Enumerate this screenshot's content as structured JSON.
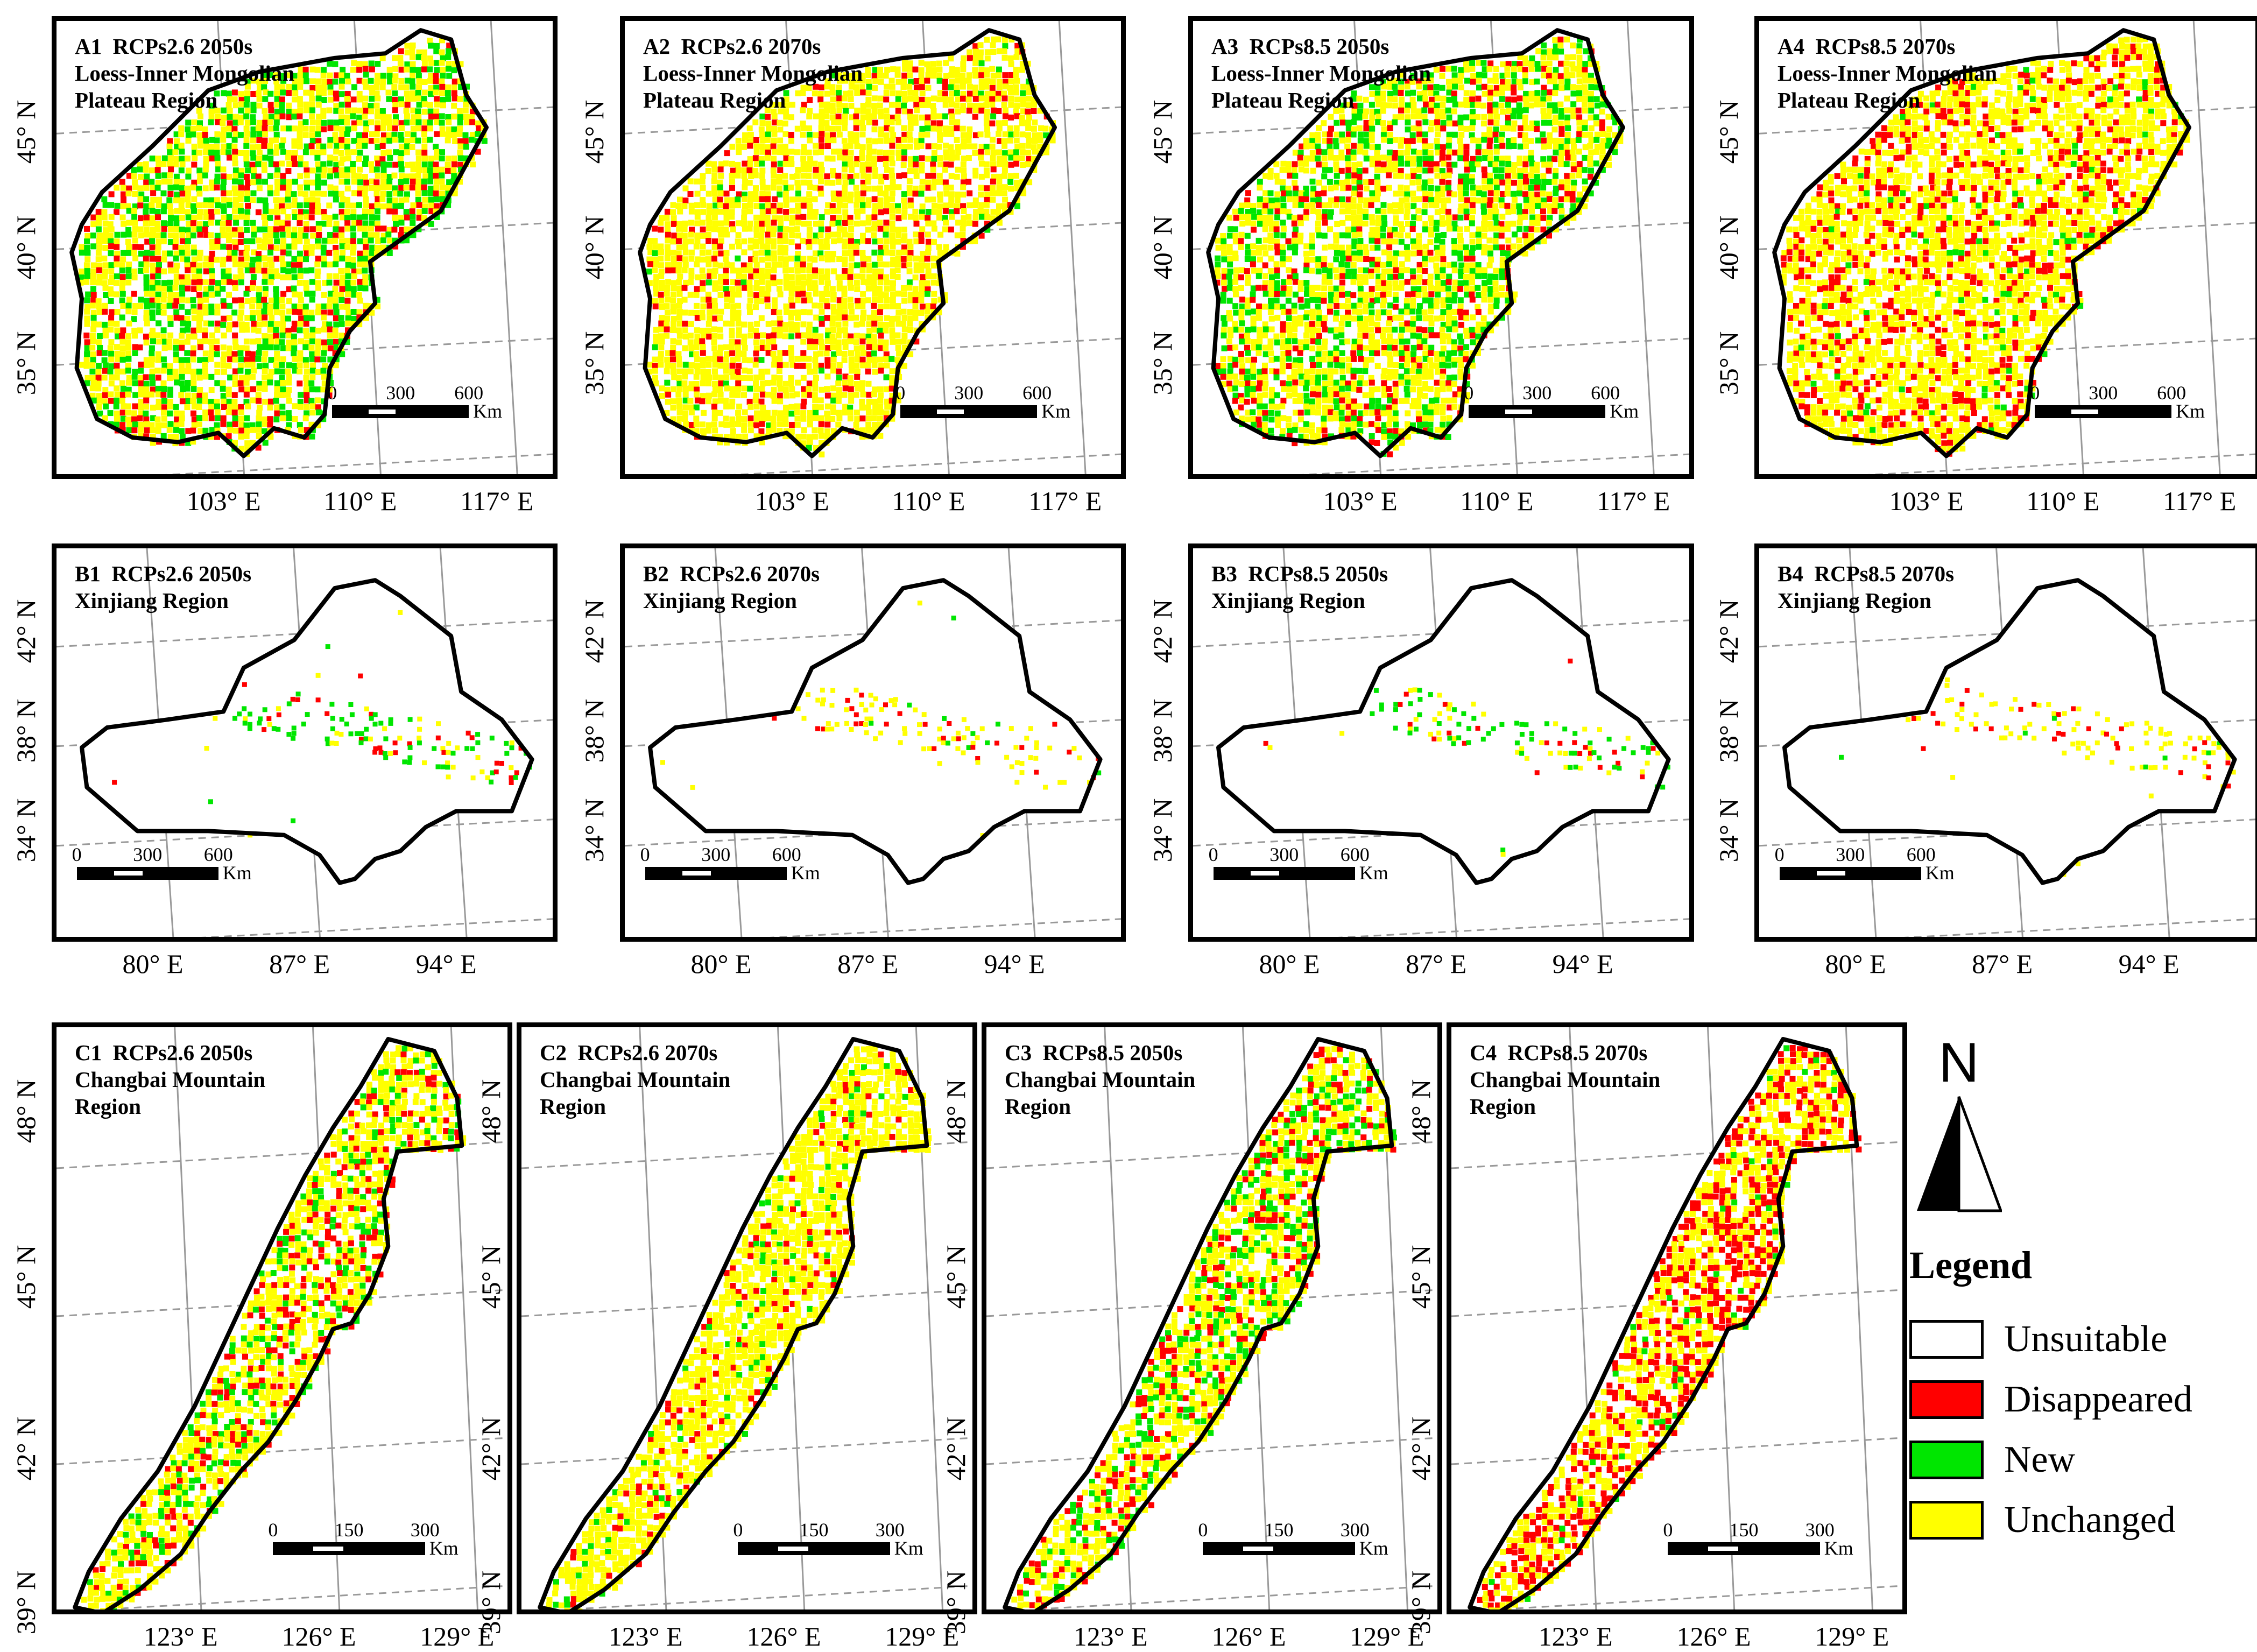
{
  "colors": {
    "unsuitable": "#ffffff",
    "disappeared": "#ff0000",
    "new": "#00e600",
    "unchanged": "#ffff00"
  },
  "regions": {
    "A": {
      "panels": [
        {
          "id": "A1",
          "scenario": "RCPs2.6 2050s",
          "region_lines": [
            "Loess-Inner Mongolian",
            "Plateau Region"
          ],
          "mix": {
            "unchanged": 0.55,
            "new": 0.3,
            "disappeared": 0.15
          }
        },
        {
          "id": "A2",
          "scenario": "RCPs2.6 2070s",
          "region_lines": [
            "Loess-Inner Mongolian",
            "Plateau Region"
          ],
          "mix": {
            "unchanged": 0.82,
            "new": 0.05,
            "disappeared": 0.13
          }
        },
        {
          "id": "A3",
          "scenario": "RCPs8.5 2050s",
          "region_lines": [
            "Loess-Inner Mongolian",
            "Plateau Region"
          ],
          "mix": {
            "unchanged": 0.55,
            "new": 0.3,
            "disappeared": 0.15
          }
        },
        {
          "id": "A4",
          "scenario": "RCPs8.5 2070s",
          "region_lines": [
            "Loess-Inner Mongolian",
            "Plateau Region"
          ],
          "mix": {
            "unchanged": 0.72,
            "new": 0.04,
            "disappeared": 0.24
          }
        }
      ],
      "lon_labels": [
        "103° E",
        "110° E",
        "117° E"
      ],
      "lat_labels": [
        "45° N",
        "40° N",
        "35° N"
      ],
      "scale_ticks": [
        "0",
        "300",
        "600"
      ],
      "scale_unit": "Km"
    },
    "B": {
      "panels": [
        {
          "id": "B1",
          "scenario": "RCPs2.6 2050s",
          "region_lines": [
            "Xinjiang Region"
          ],
          "mix": {
            "unchanged": 0.3,
            "new": 0.5,
            "disappeared": 0.2
          }
        },
        {
          "id": "B2",
          "scenario": "RCPs2.6 2070s",
          "region_lines": [
            "Xinjiang Region"
          ],
          "mix": {
            "unchanged": 0.7,
            "new": 0.1,
            "disappeared": 0.2
          }
        },
        {
          "id": "B3",
          "scenario": "RCPs8.5 2050s",
          "region_lines": [
            "Xinjiang Region"
          ],
          "mix": {
            "unchanged": 0.3,
            "new": 0.55,
            "disappeared": 0.15
          }
        },
        {
          "id": "B4",
          "scenario": "RCPs8.5 2070s",
          "region_lines": [
            "Xinjiang Region"
          ],
          "mix": {
            "unchanged": 0.65,
            "new": 0.05,
            "disappeared": 0.3
          }
        }
      ],
      "lon_labels": [
        "80° E",
        "87° E",
        "94° E"
      ],
      "lat_labels": [
        "42° N",
        "38° N",
        "34° N"
      ],
      "scale_ticks": [
        "0",
        "300",
        "600"
      ],
      "scale_unit": "Km"
    },
    "C": {
      "panels": [
        {
          "id": "C1",
          "scenario": "RCPs2.6 2050s",
          "region_lines": [
            "Changbai Mountain",
            "Region"
          ],
          "mix": {
            "unchanged": 0.6,
            "new": 0.2,
            "disappeared": 0.2
          }
        },
        {
          "id": "C2",
          "scenario": "RCPs2.6 2070s",
          "region_lines": [
            "Changbai Mountain",
            "Region"
          ],
          "mix": {
            "unchanged": 0.82,
            "new": 0.08,
            "disappeared": 0.1
          }
        },
        {
          "id": "C3",
          "scenario": "RCPs8.5 2050s",
          "region_lines": [
            "Changbai Mountain",
            "Region"
          ],
          "mix": {
            "unchanged": 0.58,
            "new": 0.22,
            "disappeared": 0.2
          }
        },
        {
          "id": "C4",
          "scenario": "RCPs8.5 2070s",
          "region_lines": [
            "Changbai Mountain",
            "Region"
          ],
          "mix": {
            "unchanged": 0.55,
            "new": 0.03,
            "disappeared": 0.42
          }
        }
      ],
      "lon_labels": [
        "123° E",
        "126° E",
        "129° E"
      ],
      "lat_labels": [
        "48° N",
        "45° N",
        "42° N",
        "39° N"
      ],
      "scale_ticks": [
        "0",
        "150",
        "300"
      ],
      "scale_unit": "Km"
    }
  },
  "north_arrow": {
    "label": "N"
  },
  "legend": {
    "title": "Legend",
    "items": [
      {
        "label": "Unsuitable",
        "color": "#ffffff"
      },
      {
        "label": "Disappeared",
        "color": "#ff0000"
      },
      {
        "label": "New",
        "color": "#00e600"
      },
      {
        "label": "Unchanged",
        "color": "#ffff00"
      }
    ]
  }
}
